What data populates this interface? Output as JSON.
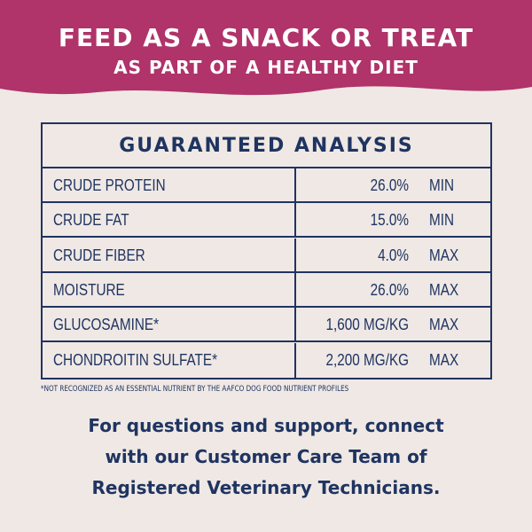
{
  "header": {
    "title": "FEED AS A SNACK OR TREAT",
    "subtitle": "AS PART OF A HEALTHY DIET"
  },
  "table": {
    "title": "GUARANTEED ANALYSIS",
    "rows": [
      [
        "CRUDE PROTEIN",
        "26.0%",
        "MIN"
      ],
      [
        "CRUDE FAT",
        "15.0%",
        "MIN"
      ],
      [
        "CRUDE FIBER",
        "4.0%",
        "MAX"
      ],
      [
        "MOISTURE",
        "26.0%",
        "MAX"
      ],
      [
        "GLUCOSAMINE*",
        "1,600 MG/KG",
        "MAX"
      ],
      [
        "CHONDROITIN SULFATE*",
        "2,200 MG/KG",
        "MAX"
      ]
    ]
  },
  "footnote": "*NOT RECOGNIZED AS AN ESSENTIAL NUTRIENT BY THE AAFCO DOG FOOD NUTRIENT PROFILES",
  "support": [
    "For questions and support, connect",
    "with our Customer Care Team of",
    "Registered Veterinary Technicians."
  ]
}
